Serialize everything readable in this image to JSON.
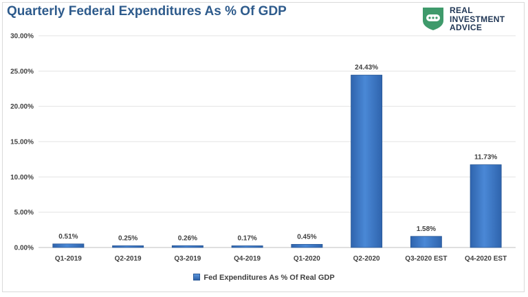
{
  "title": "Quarterly Federal Expenditures As % Of GDP",
  "logo": {
    "line1": "REAL",
    "line2": "INVESTMENT",
    "line3": "ADVICE"
  },
  "legend_label": "Fed Expenditures As % Of Real GDP",
  "colors": {
    "bar": "#3c79c8",
    "title": "#2e5b8c",
    "logo_green": "#3f9a6b"
  },
  "chart_data": {
    "type": "bar",
    "title": "Quarterly Federal Expenditures As % Of GDP",
    "categories": [
      "Q1-2019",
      "Q2-2019",
      "Q3-2019",
      "Q4-2019",
      "Q1-2020",
      "Q2-2020",
      "Q3-2020 EST",
      "Q4-2020 EST"
    ],
    "series": [
      {
        "name": "Fed Expenditures As % Of Real GDP",
        "values": [
          0.51,
          0.25,
          0.26,
          0.17,
          0.45,
          24.43,
          1.58,
          11.73
        ]
      }
    ],
    "value_labels": [
      "0.51%",
      "0.25%",
      "0.26%",
      "0.17%",
      "0.45%",
      "24.43%",
      "1.58%",
      "11.73%"
    ],
    "yticks": [
      "0.00%",
      "5.00%",
      "10.00%",
      "15.00%",
      "20.00%",
      "25.00%",
      "30.00%"
    ],
    "ylim": [
      0,
      30
    ],
    "grid": true,
    "legend_position": "bottom"
  }
}
